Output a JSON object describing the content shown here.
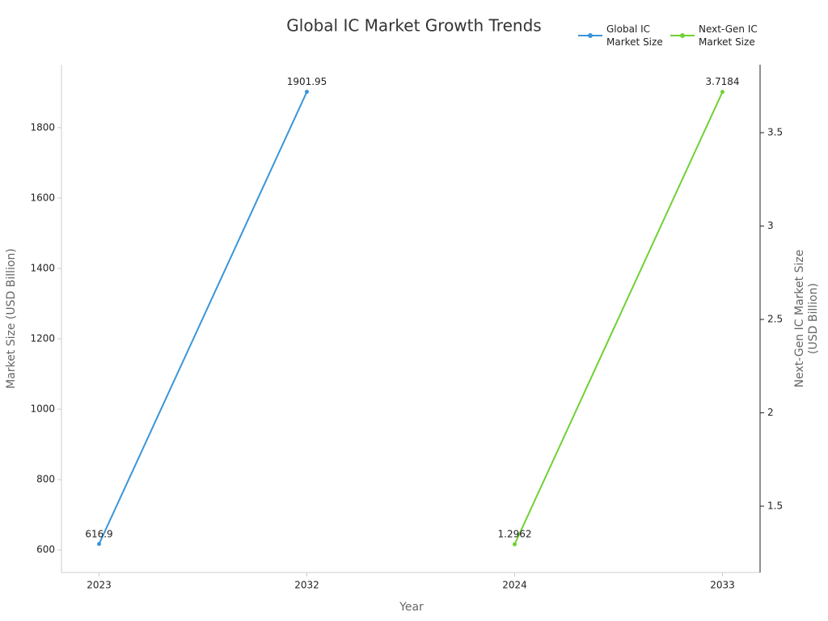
{
  "chart_data": {
    "type": "line",
    "title": "Global IC Market Growth Trends",
    "x_label": "Year",
    "y_label": "Market Size (USD Billion)",
    "y2_label": "Next-Gen IC Market Size (USD Billion)",
    "categories": [
      "2023",
      "2032",
      "2024",
      "2033"
    ],
    "series": [
      {
        "name": "Global IC Market Size",
        "color": "#3a95d8",
        "values": [
          616.9,
          1901.95,
          null,
          null
        ]
      },
      {
        "name": "Next-Gen IC Market Size",
        "color": "#6fd133",
        "axis": "y2",
        "values": [
          null,
          null,
          1.2962,
          3.7184
        ]
      }
    ],
    "ylim": [
      536,
      1979
    ],
    "yticks": [
      600,
      800,
      1000,
      1200,
      1400,
      1600,
      1800
    ],
    "y2lim": [
      1.145,
      3.864
    ],
    "y2ticks": [
      1.5,
      2,
      2.5,
      3,
      3.5
    ],
    "legend": "top-right",
    "grid": false
  }
}
